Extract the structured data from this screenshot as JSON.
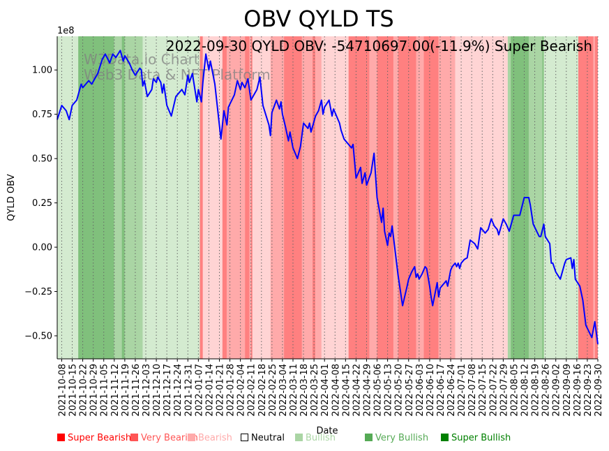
{
  "chart_data": {
    "type": "line",
    "title": "OBV QYLD TS",
    "annotation": "2022-09-30 QYLD OBV: -54710697.00(-11.9%) Super Bearish",
    "watermark": [
      "W3Data.io Chart",
      "Web3 Data & NFT Platform"
    ],
    "xlabel": "Date",
    "ylabel": "QYLD OBV",
    "y_offset_label": "1e8",
    "x_unit": "days since 2021-10-08",
    "xlim": [
      -3,
      357
    ],
    "ylim": [
      -0.63,
      1.19
    ],
    "y_ticks": [
      -0.5,
      -0.25,
      0.0,
      0.25,
      0.5,
      0.75,
      1.0
    ],
    "y_tick_labels": [
      "−0.50",
      "−0.25",
      "0.00",
      "0.25",
      "0.50",
      "0.75",
      "1.00"
    ],
    "x_tick_labels": [
      "2021-10-08",
      "2021-10-15",
      "2021-10-22",
      "2021-10-29",
      "2021-11-05",
      "2021-11-12",
      "2021-11-19",
      "2021-11-26",
      "2021-12-03",
      "2021-12-10",
      "2021-12-17",
      "2021-12-24",
      "2021-12-31",
      "2022-01-07",
      "2022-01-14",
      "2022-01-21",
      "2022-01-28",
      "2022-02-04",
      "2022-02-11",
      "2022-02-18",
      "2022-02-25",
      "2022-03-04",
      "2022-03-11",
      "2022-03-18",
      "2022-03-25",
      "2022-04-01",
      "2022-04-08",
      "2022-04-15",
      "2022-04-22",
      "2022-04-29",
      "2022-05-06",
      "2022-05-13",
      "2022-05-20",
      "2022-05-27",
      "2022-06-03",
      "2022-06-10",
      "2022-06-17",
      "2022-06-24",
      "2022-07-01",
      "2022-07-08",
      "2022-07-15",
      "2022-07-22",
      "2022-07-29",
      "2022-08-05",
      "2022-08-12",
      "2022-08-19",
      "2022-08-26",
      "2022-09-02",
      "2022-09-09",
      "2022-09-16",
      "2022-09-23",
      "2022-09-30"
    ],
    "grid": "x dotted",
    "series": [
      {
        "name": "QYLD OBV (1e8)",
        "color": "#0000ff",
        "points": [
          [
            -3,
            0.72
          ],
          [
            0,
            0.8
          ],
          [
            3,
            0.77
          ],
          [
            5,
            0.72
          ],
          [
            7,
            0.8
          ],
          [
            10,
            0.83
          ],
          [
            13,
            0.92
          ],
          [
            14,
            0.9
          ],
          [
            18,
            0.94
          ],
          [
            20,
            0.92
          ],
          [
            24,
            0.98
          ],
          [
            27,
            1.06
          ],
          [
            29,
            1.09
          ],
          [
            32,
            1.04
          ],
          [
            34,
            1.09
          ],
          [
            36,
            1.07
          ],
          [
            39,
            1.11
          ],
          [
            41,
            1.05
          ],
          [
            42,
            1.08
          ],
          [
            45,
            1.04
          ],
          [
            47,
            1.0
          ],
          [
            49,
            0.97
          ],
          [
            52,
            1.01
          ],
          [
            53,
            1.0
          ],
          [
            54,
            0.91
          ],
          [
            55,
            0.94
          ],
          [
            57,
            0.85
          ],
          [
            60,
            0.89
          ],
          [
            61,
            0.95
          ],
          [
            63,
            0.93
          ],
          [
            64,
            0.96
          ],
          [
            66,
            0.93
          ],
          [
            67,
            0.87
          ],
          [
            68,
            0.92
          ],
          [
            70,
            0.8
          ],
          [
            73,
            0.74
          ],
          [
            76,
            0.85
          ],
          [
            80,
            0.89
          ],
          [
            82,
            0.86
          ],
          [
            84,
            0.97
          ],
          [
            85,
            0.93
          ],
          [
            87,
            0.98
          ],
          [
            90,
            0.82
          ],
          [
            91,
            0.89
          ],
          [
            93,
            0.82
          ],
          [
            94,
            0.93
          ],
          [
            96,
            1.09
          ],
          [
            98,
            1.0
          ],
          [
            99,
            1.05
          ],
          [
            102,
            0.92
          ],
          [
            106,
            0.61
          ],
          [
            108,
            0.77
          ],
          [
            110,
            0.69
          ],
          [
            111,
            0.79
          ],
          [
            115,
            0.86
          ],
          [
            117,
            0.94
          ],
          [
            119,
            0.89
          ],
          [
            120,
            0.93
          ],
          [
            122,
            0.9
          ],
          [
            124,
            0.95
          ],
          [
            126,
            0.83
          ],
          [
            130,
            0.89
          ],
          [
            132,
            0.96
          ],
          [
            134,
            0.8
          ],
          [
            138,
            0.69
          ],
          [
            139,
            0.63
          ],
          [
            140,
            0.76
          ],
          [
            143,
            0.83
          ],
          [
            145,
            0.78
          ],
          [
            146,
            0.82
          ],
          [
            147,
            0.75
          ],
          [
            149,
            0.68
          ],
          [
            151,
            0.6
          ],
          [
            152,
            0.65
          ],
          [
            154,
            0.56
          ],
          [
            157,
            0.5
          ],
          [
            159,
            0.57
          ],
          [
            161,
            0.7
          ],
          [
            164,
            0.67
          ],
          [
            165,
            0.7
          ],
          [
            166,
            0.65
          ],
          [
            169,
            0.74
          ],
          [
            171,
            0.77
          ],
          [
            173,
            0.83
          ],
          [
            174,
            0.75
          ],
          [
            175,
            0.79
          ],
          [
            178,
            0.83
          ],
          [
            180,
            0.74
          ],
          [
            181,
            0.78
          ],
          [
            185,
            0.7
          ],
          [
            186,
            0.66
          ],
          [
            188,
            0.61
          ],
          [
            193,
            0.56
          ],
          [
            194,
            0.58
          ],
          [
            196,
            0.39
          ],
          [
            199,
            0.45
          ],
          [
            200,
            0.36
          ],
          [
            202,
            0.42
          ],
          [
            203,
            0.35
          ],
          [
            206,
            0.42
          ],
          [
            208,
            0.53
          ],
          [
            210,
            0.28
          ],
          [
            213,
            0.14
          ],
          [
            214,
            0.22
          ],
          [
            215,
            0.09
          ],
          [
            217,
            0.01
          ],
          [
            218,
            0.08
          ],
          [
            219,
            0.06
          ],
          [
            220,
            0.12
          ],
          [
            222,
            -0.02
          ],
          [
            224,
            -0.16
          ],
          [
            227,
            -0.33
          ],
          [
            230,
            -0.22
          ],
          [
            231,
            -0.18
          ],
          [
            233,
            -0.14
          ],
          [
            235,
            -0.11
          ],
          [
            236,
            -0.17
          ],
          [
            237,
            -0.15
          ],
          [
            238,
            -0.18
          ],
          [
            240,
            -0.15
          ],
          [
            242,
            -0.11
          ],
          [
            243,
            -0.12
          ],
          [
            245,
            -0.22
          ],
          [
            246,
            -0.28
          ],
          [
            247,
            -0.33
          ],
          [
            250,
            -0.2
          ],
          [
            251,
            -0.28
          ],
          [
            252,
            -0.23
          ],
          [
            254,
            -0.21
          ],
          [
            256,
            -0.19
          ],
          [
            257,
            -0.22
          ],
          [
            259,
            -0.13
          ],
          [
            260,
            -0.11
          ],
          [
            262,
            -0.09
          ],
          [
            263,
            -0.11
          ],
          [
            264,
            -0.09
          ],
          [
            265,
            -0.12
          ],
          [
            266,
            -0.09
          ],
          [
            268,
            -0.07
          ],
          [
            270,
            -0.06
          ],
          [
            272,
            0.04
          ],
          [
            275,
            0.02
          ],
          [
            277,
            -0.01
          ],
          [
            279,
            0.11
          ],
          [
            282,
            0.08
          ],
          [
            284,
            0.1
          ],
          [
            286,
            0.16
          ],
          [
            288,
            0.12
          ],
          [
            290,
            0.1
          ],
          [
            291,
            0.07
          ],
          [
            294,
            0.16
          ],
          [
            296,
            0.13
          ],
          [
            298,
            0.09
          ],
          [
            301,
            0.18
          ],
          [
            305,
            0.18
          ],
          [
            308,
            0.28
          ],
          [
            311,
            0.28
          ],
          [
            312,
            0.24
          ],
          [
            314,
            0.13
          ],
          [
            318,
            0.06
          ],
          [
            319,
            0.06
          ],
          [
            321,
            0.13
          ],
          [
            322,
            0.06
          ],
          [
            325,
            0.02
          ],
          [
            326,
            -0.09
          ],
          [
            327,
            -0.09
          ],
          [
            329,
            -0.14
          ],
          [
            332,
            -0.18
          ],
          [
            335,
            -0.09
          ],
          [
            336,
            -0.07
          ],
          [
            339,
            -0.06
          ],
          [
            340,
            -0.12
          ],
          [
            341,
            -0.07
          ],
          [
            342,
            -0.18
          ],
          [
            345,
            -0.22
          ],
          [
            347,
            -0.3
          ],
          [
            349,
            -0.44
          ],
          [
            353,
            -0.51
          ],
          [
            355,
            -0.42
          ],
          [
            357,
            -0.547
          ]
        ]
      }
    ],
    "sentiment_bands": [
      [
        -3,
        11,
        "Bullish"
      ],
      [
        11,
        35,
        "Super Bullish"
      ],
      [
        35,
        40,
        "Very Bullish"
      ],
      [
        40,
        42,
        "Super Bullish"
      ],
      [
        42,
        54,
        "Very Bullish"
      ],
      [
        54,
        92,
        "Bullish"
      ],
      [
        92,
        94,
        "Super Bearish"
      ],
      [
        94,
        107,
        "Bearish"
      ],
      [
        107,
        110,
        "Super Bearish"
      ],
      [
        110,
        122,
        "Very Bearish"
      ],
      [
        122,
        125,
        "Super Bearish"
      ],
      [
        125,
        126,
        "Very Bearish"
      ],
      [
        126,
        127,
        "Super Bearish"
      ],
      [
        127,
        139,
        "Bearish"
      ],
      [
        139,
        148,
        "Very Bearish"
      ],
      [
        148,
        160,
        "Super Bearish"
      ],
      [
        160,
        167,
        "Very Bearish"
      ],
      [
        167,
        169,
        "Super Bearish"
      ],
      [
        169,
        173,
        "Very Bearish"
      ],
      [
        173,
        191,
        "Bearish"
      ],
      [
        191,
        205,
        "Super Bearish"
      ],
      [
        205,
        210,
        "Very Bearish"
      ],
      [
        210,
        221,
        "Super Bearish"
      ],
      [
        221,
        224,
        "Very Bearish"
      ],
      [
        224,
        236,
        "Super Bearish"
      ],
      [
        236,
        241,
        "Very Bearish"
      ],
      [
        241,
        251,
        "Super Bearish"
      ],
      [
        251,
        262,
        "Very Bearish"
      ],
      [
        262,
        297,
        "Bearish"
      ],
      [
        297,
        299,
        "Very Bullish"
      ],
      [
        299,
        311,
        "Super Bullish"
      ],
      [
        311,
        320,
        "Very Bullish"
      ],
      [
        320,
        321,
        "Super Bullish"
      ],
      [
        321,
        344,
        "Bullish"
      ],
      [
        344,
        354,
        "Super Bearish"
      ],
      [
        354,
        355,
        "Very Bearish"
      ],
      [
        355,
        357,
        "Super Bearish"
      ]
    ],
    "band_colors": {
      "Super Bearish": "#ff8080",
      "Very Bearish": "#ffaaaa",
      "Bearish": "#ffd4d4",
      "Neutral": "#ffffff",
      "Bullish": "#d4ebd0",
      "Very Bullish": "#aad5a4",
      "Super Bullish": "#80c07c"
    },
    "legend": {
      "placement": "bottom",
      "items": [
        {
          "label": "Super Bearish",
          "color": "#ff0000"
        },
        {
          "label": "Very Bearish",
          "color": "#ff5555"
        },
        {
          "label": "Bearish",
          "color": "#ffaaaa"
        },
        {
          "label": "Neutral",
          "color": "#000000",
          "hollow": true
        },
        {
          "label": "Bullish",
          "color": "#aad5a4"
        },
        {
          "label": "Very Bullish",
          "color": "#55aa55"
        },
        {
          "label": "Super Bullish",
          "color": "#008000"
        }
      ]
    }
  }
}
